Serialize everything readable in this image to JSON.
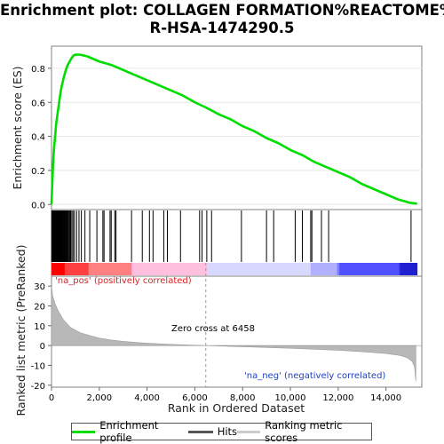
{
  "chart_data": {
    "type": "line",
    "title_line1": "Enrichment plot: COLLAGEN FORMATION%REACTOME%",
    "title_line2": "R-HSA-1474290.5",
    "es_ylabel": "Enrichment score (ES)",
    "metric_ylabel": "Ranked list metric (PreRanked)",
    "xlabel": "Rank in Ordered Dataset",
    "xlim": [
      0,
      15500
    ],
    "es_ylim": [
      -0.03,
      0.93
    ],
    "metric_ylim": [
      -21,
      35
    ],
    "x_ticks": [
      0,
      2000,
      4000,
      6000,
      8000,
      10000,
      12000,
      14000
    ],
    "x_tick_labels": [
      "0",
      "2,000",
      "4,000",
      "6,000",
      "8,000",
      "10,000",
      "12,000",
      "14,000"
    ],
    "es_ticks": [
      0.0,
      0.2,
      0.4,
      0.6,
      0.8
    ],
    "es_tick_labels": [
      "0.0",
      "0.2",
      "0.4",
      "0.6",
      "0.8"
    ],
    "metric_ticks": [
      30,
      20,
      10,
      0,
      -10,
      -20
    ],
    "metric_tick_labels": [
      "30",
      "20",
      "10",
      "0",
      "-10",
      "-20"
    ],
    "zero_cross_rank": 6458,
    "zero_cross_label": "Zero cross at 6458",
    "pos_label": "'na_pos' (positively correlated)",
    "neg_label": "'na_neg' (negatively correlated)",
    "series": [
      {
        "name": "Enrichment profile",
        "color": "#00dd00",
        "points": [
          [
            0,
            0.0
          ],
          [
            30,
            0.12
          ],
          [
            60,
            0.22
          ],
          [
            100,
            0.32
          ],
          [
            150,
            0.4
          ],
          [
            200,
            0.48
          ],
          [
            260,
            0.54
          ],
          [
            320,
            0.6
          ],
          [
            380,
            0.66
          ],
          [
            450,
            0.71
          ],
          [
            520,
            0.75
          ],
          [
            600,
            0.79
          ],
          [
            680,
            0.82
          ],
          [
            760,
            0.84
          ],
          [
            840,
            0.86
          ],
          [
            920,
            0.875
          ],
          [
            1000,
            0.88
          ],
          [
            1200,
            0.88
          ],
          [
            1500,
            0.87
          ],
          [
            2000,
            0.84
          ],
          [
            2500,
            0.82
          ],
          [
            3000,
            0.79
          ],
          [
            3500,
            0.76
          ],
          [
            4000,
            0.73
          ],
          [
            4500,
            0.7
          ],
          [
            5000,
            0.67
          ],
          [
            5500,
            0.64
          ],
          [
            6000,
            0.6
          ],
          [
            6458,
            0.57
          ],
          [
            7000,
            0.53
          ],
          [
            7500,
            0.5
          ],
          [
            8000,
            0.46
          ],
          [
            8500,
            0.43
          ],
          [
            9000,
            0.39
          ],
          [
            9500,
            0.36
          ],
          [
            10000,
            0.32
          ],
          [
            10500,
            0.29
          ],
          [
            11000,
            0.25
          ],
          [
            11500,
            0.22
          ],
          [
            12000,
            0.19
          ],
          [
            12500,
            0.16
          ],
          [
            13000,
            0.12
          ],
          [
            13500,
            0.09
          ],
          [
            14000,
            0.06
          ],
          [
            14500,
            0.03
          ],
          [
            15000,
            0.01
          ],
          [
            15300,
            0.005
          ]
        ]
      }
    ],
    "hits": [
      10,
      25,
      40,
      55,
      70,
      85,
      100,
      115,
      130,
      145,
      160,
      180,
      200,
      215,
      230,
      250,
      270,
      290,
      310,
      330,
      350,
      370,
      390,
      410,
      430,
      455,
      480,
      500,
      525,
      550,
      575,
      600,
      630,
      660,
      690,
      720,
      760,
      800,
      850,
      900,
      960,
      1050,
      1150,
      1250,
      1400,
      1600,
      1900,
      2150,
      2200,
      2450,
      2500,
      2650,
      2700,
      3350,
      3800,
      4100,
      4250,
      4700,
      4850,
      5400,
      6200,
      6300,
      6500,
      6700,
      7950,
      9000,
      9300,
      10200,
      10500,
      10850,
      10900,
      11300,
      11600,
      15050
    ],
    "metric_points": [
      [
        0,
        30
      ],
      [
        50,
        25
      ],
      [
        150,
        21
      ],
      [
        300,
        17
      ],
      [
        500,
        13
      ],
      [
        800,
        9
      ],
      [
        1200,
        6.5
      ],
      [
        1600,
        5
      ],
      [
        2000,
        3.8
      ],
      [
        2500,
        2.8
      ],
      [
        3000,
        2.1
      ],
      [
        3500,
        1.6
      ],
      [
        4000,
        1.2
      ],
      [
        4500,
        0.9
      ],
      [
        5000,
        0.6
      ],
      [
        5500,
        0.35
      ],
      [
        6000,
        0.15
      ],
      [
        6458,
        0
      ],
      [
        7000,
        -0.2
      ],
      [
        7500,
        -0.4
      ],
      [
        8000,
        -0.6
      ],
      [
        9000,
        -1.0
      ],
      [
        10000,
        -1.4
      ],
      [
        11000,
        -1.9
      ],
      [
        12000,
        -2.4
      ],
      [
        13000,
        -3.1
      ],
      [
        14000,
        -4.0
      ],
      [
        14600,
        -5.0
      ],
      [
        14900,
        -6.2
      ],
      [
        15100,
        -8
      ],
      [
        15200,
        -11
      ],
      [
        15250,
        -18
      ]
    ],
    "legend": {
      "enrichment_label": "Enrichment profile",
      "hits_label": "Hits",
      "ranking_label": "Ranking metric scores"
    }
  }
}
